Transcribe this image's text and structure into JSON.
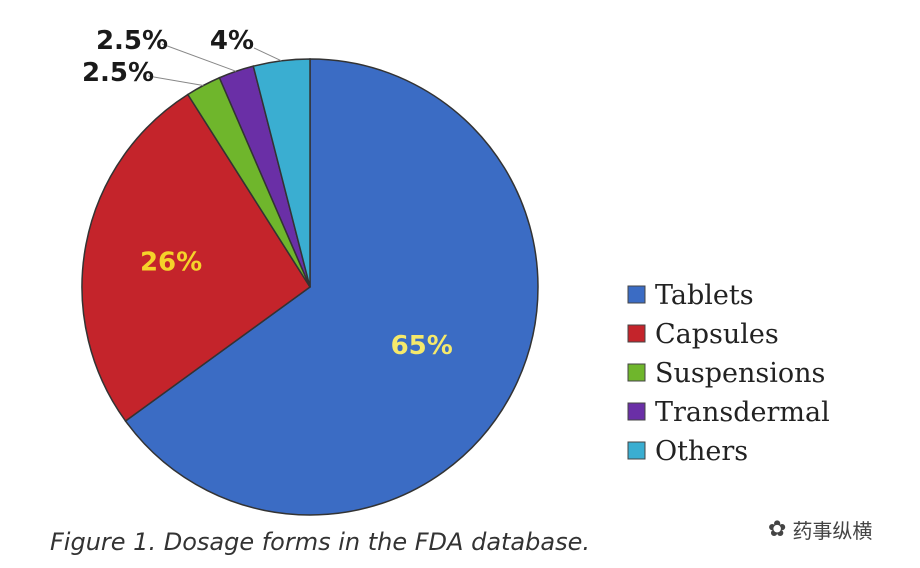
{
  "chart_data": {
    "type": "pie",
    "title": "",
    "caption": "Figure 1. Dosage forms in the FDA database.",
    "categories": [
      "Tablets",
      "Capsules",
      "Suspensions",
      "Transdermal",
      "Others"
    ],
    "values": [
      65,
      26,
      2.5,
      2.5,
      4
    ],
    "value_labels": [
      "65%",
      "26%",
      "2.5%",
      "2.5%",
      "4%"
    ],
    "colors": [
      "#3b6cc4",
      "#c4242b",
      "#6fb62c",
      "#6a2fa6",
      "#3aaed1"
    ],
    "label_colors": [
      "#f5e96b",
      "#f5d32a",
      "#1a1a1a",
      "#1a1a1a",
      "#1a1a1a"
    ],
    "legend_placement": "right"
  },
  "watermark": {
    "text": "药事纵横",
    "icon": "wechat-icon"
  }
}
